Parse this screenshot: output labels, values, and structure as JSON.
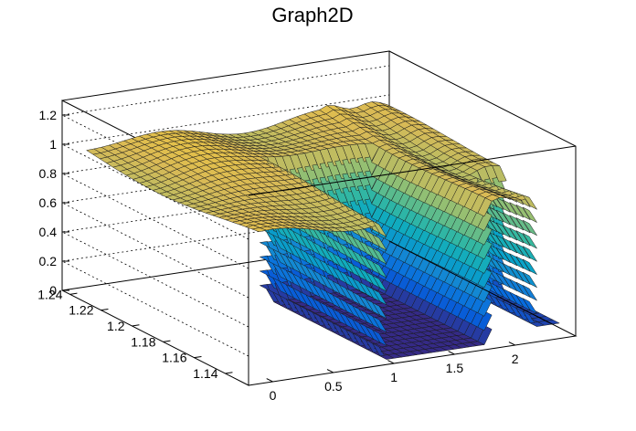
{
  "chart_data": {
    "type": "surface3d",
    "title": "Graph2D",
    "xlabel": "",
    "ylabel": "",
    "zlabel": "",
    "xlim": [
      -0.2,
      2.5
    ],
    "ylim": [
      1.125,
      1.245
    ],
    "zlim": [
      0,
      1.3
    ],
    "grid": true,
    "palette": [
      "#352a87",
      "#0363e1",
      "#1485d4",
      "#06a7c6",
      "#38b99e",
      "#92bf73",
      "#d9ba56",
      "#fcce2e",
      "#f9fb0e"
    ],
    "x_ticks": [
      {
        "value": 0,
        "label": "0"
      },
      {
        "value": 0.5,
        "label": "0.5"
      },
      {
        "value": 1,
        "label": "1"
      },
      {
        "value": 1.5,
        "label": "1.5"
      },
      {
        "value": 2,
        "label": "2"
      }
    ],
    "y_ticks": [
      {
        "value": 1.14,
        "label": "1.14"
      },
      {
        "value": 1.16,
        "label": "1.16"
      },
      {
        "value": 1.18,
        "label": "1.18"
      },
      {
        "value": 1.2,
        "label": "1.2"
      },
      {
        "value": 1.22,
        "label": "1.22"
      },
      {
        "value": 1.24,
        "label": "1.24"
      }
    ],
    "z_ticks": [
      {
        "value": 0,
        "label": "0"
      },
      {
        "value": 0.2,
        "label": "0.2"
      },
      {
        "value": 0.4,
        "label": "0.4"
      },
      {
        "value": 0.6,
        "label": "0.6"
      },
      {
        "value": 0.8,
        "label": "0.8"
      },
      {
        "value": 1,
        "label": "1"
      },
      {
        "value": 1.2,
        "label": "1.2"
      }
    ],
    "surface": {
      "plateau_z": 0.97,
      "zero_region_x": [
        1.0,
        1.85
      ],
      "zero_region_y_max": 1.205,
      "low_region_x_min": 2.2,
      "low_region_y_max": 1.165
    }
  }
}
